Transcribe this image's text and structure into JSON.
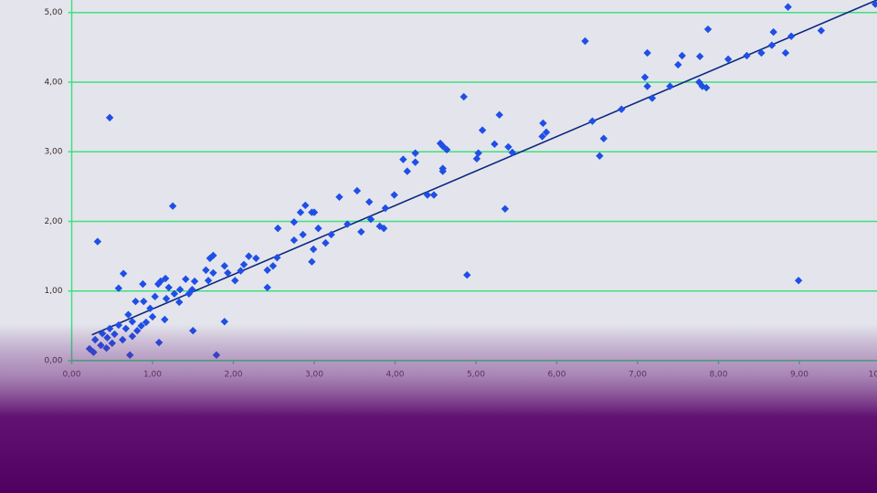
{
  "chart_data": {
    "type": "scatter",
    "x": [
      8.86,
      9.94,
      9.27,
      7.87,
      6.35,
      7.12,
      7.55,
      7.5,
      7.77,
      8.12,
      8.35,
      8.53,
      8.66,
      8.68,
      8.83,
      8.9,
      7.09,
      7.12,
      7.18,
      7.4,
      7.76,
      7.8,
      7.85,
      6.8,
      6.44,
      6.58,
      6.53,
      5.83,
      5.87,
      5.82,
      4.85,
      5.29,
      5.08,
      5.23,
      5.4,
      5.45,
      5.03,
      5.01,
      5.36,
      4.89,
      8.99,
      4.25,
      4.25,
      4.56,
      4.59,
      4.64,
      4.59,
      4.59,
      4.1,
      4.15,
      4.4,
      4.48,
      3.99,
      3.53,
      3.31,
      3.68,
      3.88,
      2.89,
      2.97,
      3.0,
      2.83,
      2.75,
      3.41,
      3.05,
      2.55,
      3.58,
      3.7,
      3.81,
      3.86,
      3.21,
      2.86,
      2.75,
      3.14,
      2.99,
      2.97,
      2.54,
      2.49,
      2.42,
      2.28,
      2.19,
      2.13,
      2.09,
      2.02,
      1.93,
      1.89,
      1.75,
      1.71,
      1.75,
      1.69,
      1.66,
      1.52,
      1.41,
      1.49,
      1.45,
      1.34,
      1.27,
      1.33,
      1.2,
      1.16,
      1.1,
      1.07,
      1.17,
      1.25,
      0.47,
      0.32,
      0.64,
      0.58,
      0.88,
      0.79,
      0.89,
      0.97,
      1.03,
      1.89,
      1.5,
      1.08,
      0.72,
      1.79,
      2.42,
      0.92,
      1.0,
      1.15,
      0.7,
      0.75,
      0.58,
      0.47,
      0.38,
      0.29,
      0.22,
      0.27,
      0.36,
      0.44,
      0.53,
      0.63,
      0.81,
      0.86,
      0.67,
      0.5,
      0.43,
      0.75
    ],
    "values": [
      5.08,
      5.12,
      4.74,
      4.76,
      4.59,
      4.42,
      4.38,
      4.25,
      4.37,
      4.33,
      4.38,
      4.42,
      4.53,
      4.72,
      4.42,
      4.66,
      4.07,
      3.94,
      3.77,
      3.94,
      4.0,
      3.94,
      3.92,
      3.61,
      3.44,
      3.19,
      2.94,
      3.41,
      3.28,
      3.22,
      3.79,
      3.53,
      3.31,
      3.11,
      3.07,
      2.99,
      2.98,
      2.9,
      2.18,
      1.23,
      1.15,
      2.98,
      2.85,
      3.12,
      3.08,
      3.03,
      2.76,
      2.72,
      2.89,
      2.72,
      2.38,
      2.38,
      2.38,
      2.44,
      2.35,
      2.28,
      2.19,
      2.23,
      2.13,
      2.13,
      2.13,
      1.99,
      1.96,
      1.9,
      1.9,
      1.85,
      2.03,
      1.93,
      1.9,
      1.81,
      1.81,
      1.73,
      1.69,
      1.6,
      1.42,
      1.48,
      1.36,
      1.3,
      1.47,
      1.5,
      1.38,
      1.29,
      1.15,
      1.26,
      1.36,
      1.51,
      1.47,
      1.26,
      1.15,
      1.3,
      1.14,
      1.17,
      1.02,
      0.96,
      1.02,
      0.96,
      0.84,
      1.05,
      1.18,
      1.14,
      1.1,
      0.89,
      2.22,
      3.49,
      1.71,
      1.25,
      1.04,
      1.1,
      0.85,
      0.85,
      0.75,
      0.92,
      0.56,
      0.43,
      0.26,
      0.08,
      0.08,
      1.05,
      0.55,
      0.63,
      0.59,
      0.66,
      0.56,
      0.51,
      0.46,
      0.39,
      0.3,
      0.17,
      0.12,
      0.22,
      0.33,
      0.38,
      0.3,
      0.43,
      0.5,
      0.46,
      0.25,
      0.18,
      0.35
    ],
    "color": "#1f4fe6",
    "trendline": {
      "x": [
        0.25,
        10
      ],
      "values": [
        0.37,
        5.2
      ],
      "color": "#0d2a80"
    },
    "xlim": [
      0,
      10
    ],
    "ylim": [
      0,
      5.18
    ],
    "xticks": [
      {
        "value": 0,
        "label": "0,00"
      },
      {
        "value": 1,
        "label": "1,00"
      },
      {
        "value": 2,
        "label": "2,00"
      },
      {
        "value": 3,
        "label": "3,00"
      },
      {
        "value": 4,
        "label": "4,00"
      },
      {
        "value": 5,
        "label": "5,00"
      },
      {
        "value": 6,
        "label": "6,00"
      },
      {
        "value": 7,
        "label": "7,00"
      },
      {
        "value": 8,
        "label": "8,00"
      },
      {
        "value": 9,
        "label": "9,00"
      },
      {
        "value": 10,
        "label": "10,00"
      }
    ],
    "yticks": [
      {
        "value": 0,
        "label": "0,00"
      },
      {
        "value": 1,
        "label": "1,00"
      },
      {
        "value": 2,
        "label": "2,00"
      },
      {
        "value": 3,
        "label": "3,00"
      },
      {
        "value": 4,
        "label": "4,00"
      },
      {
        "value": 5,
        "label": "5,00"
      }
    ],
    "grid": true,
    "grid_color": "#3ee07e"
  }
}
